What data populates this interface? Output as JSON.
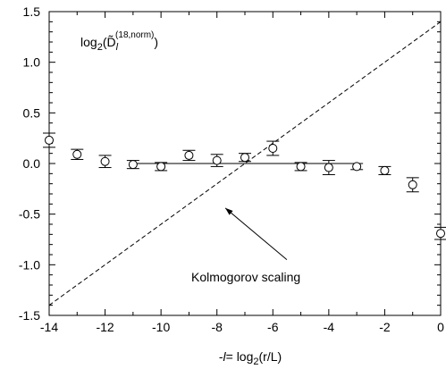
{
  "chart_data": {
    "type": "scatter",
    "xlabel": "-l= log₂(r/L)",
    "ylabel": "",
    "xlim": [
      -14,
      0
    ],
    "ylim": [
      -1.5,
      1.5
    ],
    "xticks": [
      -14,
      -12,
      -10,
      -8,
      -6,
      -4,
      -2,
      0
    ],
    "xtick_labels": [
      "-14",
      "-12",
      "-10",
      "-8",
      "-6",
      "-4",
      "-2",
      "0"
    ],
    "yticks": [
      1.5,
      1.0,
      0.5,
      0.0,
      -0.5,
      -1.0,
      -1.5
    ],
    "ytick_labels": [
      "1.5",
      "1.0",
      "0.5",
      "0.0",
      "-0.5",
      "-1.0",
      "-1.5"
    ],
    "grid": false,
    "series": [
      {
        "marker": "circle",
        "points": [
          {
            "x": -14,
            "y": 0.23,
            "err": 0.07
          },
          {
            "x": -13,
            "y": 0.09,
            "err": 0.05
          },
          {
            "x": -12,
            "y": 0.02,
            "err": 0.06
          },
          {
            "x": -11,
            "y": -0.01,
            "err": 0.04
          },
          {
            "x": -10,
            "y": -0.03,
            "err": 0.04
          },
          {
            "x": -9,
            "y": 0.08,
            "err": 0.05
          },
          {
            "x": -8,
            "y": 0.03,
            "err": 0.06
          },
          {
            "x": -7,
            "y": 0.06,
            "err": 0.04
          },
          {
            "x": -6,
            "y": 0.15,
            "err": 0.07
          },
          {
            "x": -5,
            "y": -0.03,
            "err": 0.04
          },
          {
            "x": -4,
            "y": -0.04,
            "err": 0.07
          },
          {
            "x": -3,
            "y": -0.03,
            "err": 0.03
          },
          {
            "x": -2,
            "y": -0.07,
            "err": 0.04
          },
          {
            "x": -1,
            "y": -0.21,
            "err": 0.07
          },
          {
            "x": 0,
            "y": -0.69,
            "err": 0.06
          }
        ]
      },
      {
        "style": "solid",
        "x": [
          -11,
          -3
        ],
        "y": [
          0,
          0
        ]
      },
      {
        "style": "dashed",
        "x": [
          -14,
          0
        ],
        "y": [
          -1.4,
          1.4
        ]
      }
    ],
    "annotations": {
      "title_text": "log₂(D̃ₗ⁽¹⁸˒ⁿᵒʳᵐ⁾)",
      "title_base": "log",
      "title_sub": "2",
      "title_D": "(D̃",
      "title_l": "l",
      "title_sup": "(18,norm)",
      "title_close": ")",
      "kolmogorov": "Kolmogorov scaling",
      "kolmogorov_arrow_from": {
        "x": -5.5,
        "y": -0.95
      },
      "kolmogorov_arrow_to": {
        "x": -7.7,
        "y": -0.44
      }
    },
    "xlabel_parts": {
      "prefix": "-",
      "l": "l",
      "eq": "= log",
      "sub": "2",
      "rest": "(r/L)"
    }
  }
}
